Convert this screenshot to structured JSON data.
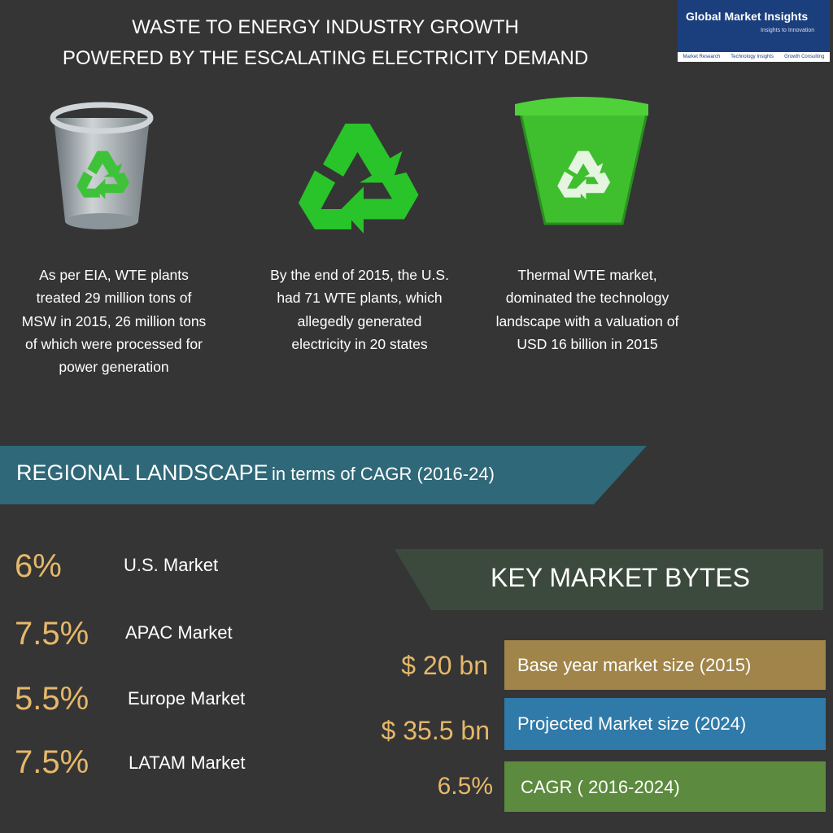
{
  "header": {
    "title_lines": [
      "WASTE TO ENERGY INDUSTRY GROWTH",
      "POWERED BY THE ESCALATING ELECTRICITY DEMAND"
    ]
  },
  "logo": {
    "name": "Global Market Insights",
    "tagline": "Insights to Innovation",
    "links": [
      "Market Research",
      "Technology Insights",
      "Growth Consulting"
    ]
  },
  "facts": [
    "As per EIA, WTE plants treated 29 million tons of MSW in 2015, 26 million tons of which were processed for power generation",
    "By the end of 2015, the U.S. had 71 WTE plants, which allegedly generated electricity in 20 states",
    "Thermal WTE market, dominated the technology landscape with a valuation of USD 16 billion in 2015"
  ],
  "regional": {
    "heading": "REGIONAL LANDSCAPE",
    "subheading": "in terms of CAGR (2016-24)",
    "rows": [
      [
        "6%",
        "U.S. Market"
      ],
      [
        "7.5%",
        "APAC Market"
      ],
      [
        "5.5%",
        "Europe Market"
      ],
      [
        "7.5%",
        "LATAM Market"
      ]
    ]
  },
  "key_bytes": {
    "heading": "KEY MARKET BYTES",
    "rows": [
      [
        "$ 20 bn",
        "Base year market size (2015)"
      ],
      [
        "$ 35.5 bn",
        "Projected Market size (2024)"
      ],
      [
        "6.5%",
        "CAGR ( 2016-2024)"
      ]
    ]
  }
}
